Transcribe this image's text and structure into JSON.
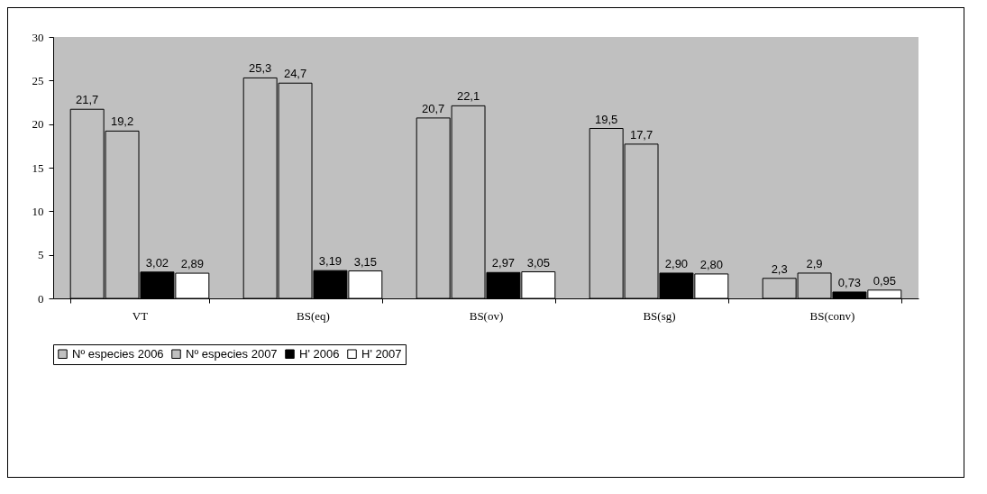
{
  "chart_data": {
    "type": "bar",
    "categories": [
      "VT",
      "BS(eq)",
      "BS(ov)",
      "BS(sg)",
      "BS(conv)"
    ],
    "series": [
      {
        "name": "Nº especies 2006",
        "color": "#c0c0c0",
        "values": [
          21.7,
          25.3,
          20.7,
          19.5,
          2.3
        ],
        "value_labels": [
          "21,7",
          "25,3",
          "20,7",
          "19,5",
          "2,3"
        ]
      },
      {
        "name": "Nº especies 2007",
        "color": "#c0c0c0",
        "values": [
          19.2,
          24.7,
          22.1,
          17.7,
          2.9
        ],
        "value_labels": [
          "19,2",
          "24,7",
          "22,1",
          "17,7",
          "2,9"
        ]
      },
      {
        "name": "H' 2006",
        "color": "#000000",
        "values": [
          3.02,
          3.19,
          2.97,
          2.9,
          0.73
        ],
        "value_labels": [
          "3,02",
          "3,19",
          "2,97",
          "2,90",
          "0,73"
        ]
      },
      {
        "name": "H' 2007",
        "color": "#ffffff",
        "values": [
          2.89,
          3.15,
          3.05,
          2.8,
          0.95
        ],
        "value_labels": [
          "2,89",
          "3,15",
          "3,05",
          "2,80",
          "0,95"
        ]
      }
    ],
    "ylim": [
      0,
      30
    ],
    "yticks": [
      0,
      5,
      10,
      15,
      20,
      25,
      30
    ],
    "grid": false,
    "legend": "bottom"
  }
}
